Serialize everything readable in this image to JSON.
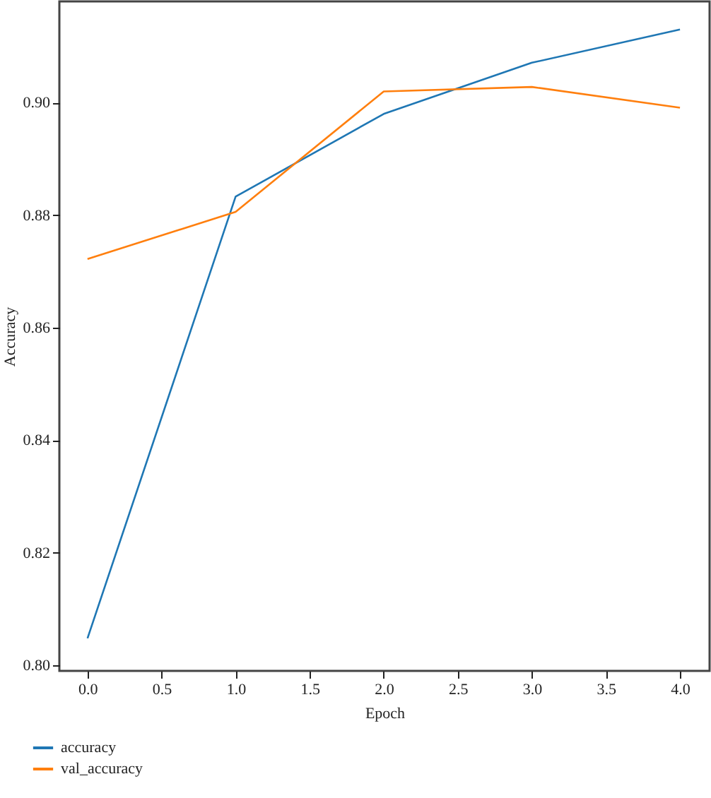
{
  "chart_data": {
    "type": "line",
    "xlabel": "Epoch",
    "ylabel": "Accuracy",
    "x": [
      0,
      1,
      2,
      3,
      4
    ],
    "series": [
      {
        "name": "accuracy",
        "color": "#1f77b4",
        "values": [
          0.8048,
          0.8833,
          0.898,
          0.9071,
          0.913
        ]
      },
      {
        "name": "val_accuracy",
        "color": "#ff7f0e",
        "values": [
          0.8722,
          0.8806,
          0.902,
          0.9028,
          0.8991
        ]
      }
    ],
    "xlim": [
      -0.19,
      4.2
    ],
    "ylim": [
      0.799,
      0.918
    ],
    "xticks": [
      {
        "value": 0,
        "label": "0.0"
      },
      0.5,
      {
        "value": 1,
        "label": "1.0"
      },
      1.5,
      {
        "value": 2,
        "label": "2.0"
      },
      2.5,
      {
        "value": 3,
        "label": "3.0"
      },
      3.5,
      {
        "value": 4,
        "label": "4.0"
      }
    ],
    "yticks": [
      {
        "value": 0.8,
        "label": "0.80"
      },
      0.82,
      0.84,
      0.86,
      0.88,
      {
        "value": 0.9,
        "label": "0.90"
      }
    ],
    "grid": false,
    "legend": "bottom left",
    "marker": "none",
    "line_style": "solid"
  }
}
